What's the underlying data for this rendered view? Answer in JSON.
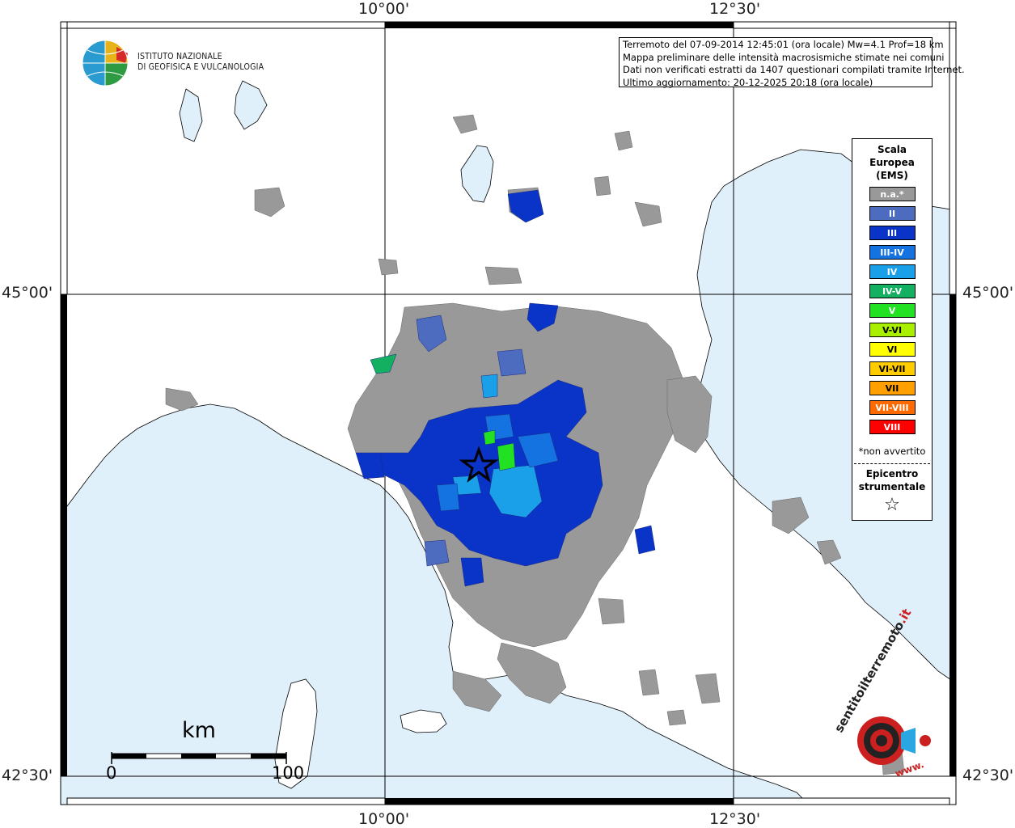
{
  "map": {
    "coords": {
      "top": [
        "10°00'",
        "12°30'"
      ],
      "bottom": [
        "10°00'",
        "12°30'"
      ],
      "left": [
        "45°00'",
        "42°30'"
      ],
      "right": [
        "45°00'",
        "42°30'"
      ]
    },
    "colors": {
      "sea": "#dff0fb",
      "land": "#ffffff",
      "not_felt": "#999999",
      "coast": "#000000"
    }
  },
  "info": {
    "line1": "Terremoto del 07-09-2014 12:45:01 (ora locale) Mw=4.1 Prof=18 km",
    "line2": "Mappa preliminare delle intensità macrosismiche stimate nei comuni",
    "line3": "Dati non verificati estratti da 1407 questionari compilati tramite Internet.",
    "line4": "Ultimo aggiornamento: 20-12-2025 20:18 (ora locale)"
  },
  "logo": {
    "line1": "ISTITUTO NAZIONALE",
    "line2": "DI GEOFISICA E VULCANOLOGIA"
  },
  "legend": {
    "title1": "Scala",
    "title2": "Europea",
    "title3": "(EMS)",
    "items": [
      {
        "label": "n.a.*",
        "color": "#999999"
      },
      {
        "label": "II",
        "color": "#4d6bbf"
      },
      {
        "label": "III",
        "color": "#0a34c8"
      },
      {
        "label": "III-IV",
        "color": "#1473e0"
      },
      {
        "label": "IV",
        "color": "#1aa0e8"
      },
      {
        "label": "IV-V",
        "color": "#12b060"
      },
      {
        "label": "V",
        "color": "#22e022"
      },
      {
        "label": "V-VI",
        "color": "#a8f000"
      },
      {
        "label": "VI",
        "color": "#ffff00"
      },
      {
        "label": "VI-VII",
        "color": "#ffcc00"
      },
      {
        "label": "VII",
        "color": "#ffa000"
      },
      {
        "label": "VII-VIII",
        "color": "#ff6a00"
      },
      {
        "label": "VIII",
        "color": "#ff0000"
      }
    ],
    "note": "*non avvertito",
    "epi1": "Epicentro",
    "epi2": "strumentale",
    "star": "☆"
  },
  "scale": {
    "unit": "km",
    "min": "0",
    "max": "100"
  },
  "badge": {
    "text_main": "sentitoilterremoto",
    "text_it": ".it",
    "text_www": "www."
  }
}
